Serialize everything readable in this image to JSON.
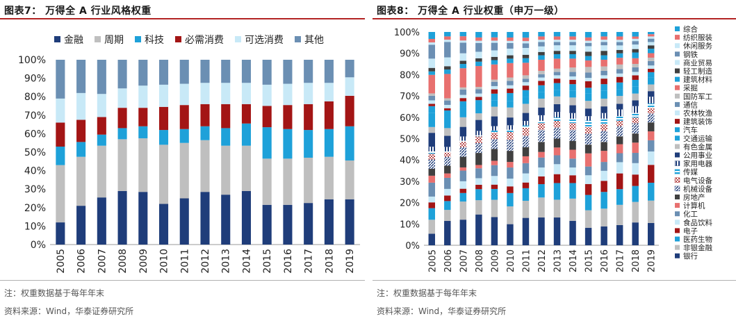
{
  "left": {
    "title": "图表7：  万得全 A 行业风格权重",
    "note": "注：权重数据基于每年年末",
    "source": "资料来源：Wind，华泰证券研究所"
  },
  "right": {
    "title": "图表8：  万得全 A 行业权重（申万一级）",
    "note": "注：权重数据基于每年年末",
    "source": "资料来源：Wind，华泰证券研究所"
  },
  "chart_data": [
    {
      "type": "bar",
      "stacked": true,
      "percent": true,
      "title": "万得全 A 行业风格权重",
      "categories": [
        "2005",
        "2006",
        "2007",
        "2008",
        "2009",
        "2010",
        "2011",
        "2012",
        "2013",
        "2014",
        "2015",
        "2016",
        "2017",
        "2018",
        "2019"
      ],
      "ylim": [
        0,
        100
      ],
      "yticks": [
        "0%",
        "10%",
        "20%",
        "30%",
        "40%",
        "50%",
        "60%",
        "70%",
        "80%",
        "90%",
        "100%"
      ],
      "legend_position": "top",
      "grid": false,
      "series": [
        {
          "name": "金融",
          "color": "#1f3d7a",
          "values": [
            12,
            21,
            25.5,
            29,
            28.5,
            22,
            25,
            28.5,
            27,
            29,
            21.5,
            21.5,
            22.5,
            24.5,
            24.5
          ]
        },
        {
          "name": "周期",
          "color": "#bfbfbf",
          "values": [
            31,
            26.5,
            28,
            28,
            29,
            32,
            30,
            28,
            26.5,
            24.5,
            25,
            25,
            24.5,
            23,
            21
          ]
        },
        {
          "name": "科技",
          "color": "#1ea1d9",
          "values": [
            10,
            8,
            6,
            6,
            6.5,
            8,
            7.5,
            7.5,
            9.5,
            12,
            17,
            16,
            15,
            15,
            18.5
          ]
        },
        {
          "name": "必需消费",
          "color": "#a31515",
          "values": [
            13,
            12,
            9.5,
            11,
            10,
            12.5,
            13,
            12,
            13,
            10.5,
            11.5,
            13,
            14,
            15,
            16.5
          ]
        },
        {
          "name": "可选消费",
          "color": "#c8e9f7",
          "values": [
            13,
            14.5,
            12.5,
            10.5,
            12,
            12,
            11.5,
            11.5,
            11.5,
            11.5,
            11.5,
            11.5,
            11.5,
            10,
            10
          ]
        },
        {
          "name": "其他",
          "color": "#6b8fb3",
          "values": [
            21,
            18,
            18.5,
            15.5,
            14,
            13.5,
            13,
            12.5,
            12.5,
            12.5,
            13.5,
            13,
            12.5,
            12.5,
            9.5
          ]
        }
      ]
    },
    {
      "type": "bar",
      "stacked": true,
      "percent": true,
      "title": "万得全 A 行业权重（申万一级）",
      "categories": [
        "2005",
        "2006",
        "2007",
        "2008",
        "2009",
        "2010",
        "2011",
        "2012",
        "2013",
        "2014",
        "2015",
        "2016",
        "2017",
        "2018",
        "2019"
      ],
      "ylim": [
        0,
        100
      ],
      "yticks": [
        "0%",
        "10%",
        "20%",
        "30%",
        "40%",
        "50%",
        "60%",
        "70%",
        "80%",
        "90%",
        "100%"
      ],
      "legend_position": "right",
      "grid": false,
      "series": [
        {
          "name": "银行",
          "color": "#1f3d7a",
          "pattern": "none",
          "values": [
            5,
            11,
            12,
            14,
            13,
            9.5,
            12,
            12.5,
            12.5,
            11,
            8,
            8.5,
            9,
            10,
            10
          ]
        },
        {
          "name": "非银金融",
          "color": "#bfbfbf",
          "pattern": "none",
          "values": [
            6,
            5,
            8.5,
            6.5,
            8,
            8,
            7.5,
            9,
            8,
            10,
            8,
            8,
            9,
            9,
            10
          ]
        },
        {
          "name": "医药生物",
          "color": "#1ea1d9",
          "pattern": "none",
          "values": [
            5,
            4,
            4,
            5,
            5,
            6,
            5.5,
            6,
            7.5,
            7,
            7,
            7.5,
            7,
            7,
            8
          ]
        },
        {
          "name": "电子",
          "color": "#a31515",
          "pattern": "none",
          "values": [
            2.5,
            2.5,
            2,
            2,
            2,
            3,
            2.5,
            3.5,
            4,
            3.5,
            5,
            5,
            7,
            5,
            8
          ]
        },
        {
          "name": "食品饮料",
          "color": "#c8e9f7",
          "pattern": "none",
          "values": [
            2.5,
            3,
            3.5,
            3,
            4,
            3.5,
            4,
            4,
            4.5,
            3.5,
            4,
            4.5,
            5,
            5,
            6
          ]
        },
        {
          "name": "化工",
          "color": "#6b8fb3",
          "pattern": "none",
          "values": [
            6,
            5,
            5,
            4.5,
            5,
            5,
            4.5,
            4.5,
            4,
            4,
            4,
            4,
            4,
            4.5,
            5
          ]
        },
        {
          "name": "计算机",
          "color": "#e8706f",
          "pattern": "none",
          "values": [
            3,
            2,
            1.5,
            1.5,
            2,
            2.5,
            3,
            2.5,
            3.5,
            4,
            6,
            5,
            4,
            4.5,
            4
          ]
        },
        {
          "name": "房地产",
          "color": "#404040",
          "pattern": "none",
          "values": [
            3,
            3.5,
            5,
            5.5,
            5.5,
            5,
            4,
            4.5,
            4,
            4,
            4,
            4,
            3.5,
            4,
            4
          ]
        },
        {
          "name": "机械设备",
          "color": "#1f3d7a",
          "pattern": "diag",
          "values": [
            4,
            4,
            4.5,
            4.5,
            4.5,
            5,
            5,
            5.5,
            5,
            5,
            5,
            5,
            4.5,
            4.5,
            4
          ]
        },
        {
          "name": "电气设备",
          "color": "#a31515",
          "pattern": "dots",
          "values": [
            2.5,
            2,
            2.5,
            3,
            3,
            3.5,
            3.5,
            3,
            3,
            3,
            3,
            3,
            2.5,
            2.5,
            2.5
          ]
        },
        {
          "name": "传媒",
          "color": "#1ea1d9",
          "pattern": "hstripe",
          "values": [
            1,
            0.5,
            0.5,
            0.5,
            1,
            1,
            1,
            1,
            1.5,
            2,
            3,
            2.5,
            2,
            2,
            2
          ]
        },
        {
          "name": "家用电器",
          "color": "#1f3d7a",
          "pattern": "vstripe",
          "values": [
            2,
            2,
            2,
            2,
            2,
            2,
            2,
            2.5,
            2.5,
            2.5,
            2,
            2.5,
            3,
            3,
            3
          ]
        },
        {
          "name": "公用事业",
          "color": "#1f3d7a",
          "pattern": "none",
          "values": [
            6,
            5,
            4.5,
            5,
            4.5,
            3.5,
            3.5,
            3.5,
            3.5,
            3.5,
            3.5,
            3,
            2.5,
            2.5,
            2.5
          ]
        },
        {
          "name": "有色金属",
          "color": "#bfbfbf",
          "pattern": "none",
          "values": [
            2.5,
            3.5,
            4.5,
            3,
            4.5,
            4.5,
            4,
            4,
            3.5,
            3.5,
            3.5,
            3.5,
            3.5,
            3,
            3
          ]
        },
        {
          "name": "交通运输",
          "color": "#1ea1d9",
          "pattern": "none",
          "values": [
            6,
            5,
            4.5,
            3.5,
            3,
            3,
            3,
            3,
            3,
            3,
            3.5,
            3.5,
            3,
            3,
            3
          ]
        },
        {
          "name": "汽车",
          "color": "#1ea1d9",
          "pattern": "none",
          "values": [
            3,
            3,
            3,
            2.5,
            3,
            3.5,
            3,
            3,
            3,
            3,
            2.5,
            3,
            3,
            3,
            2.5
          ]
        },
        {
          "name": "建筑装饰",
          "color": "#a31515",
          "pattern": "none",
          "values": [
            1,
            1,
            1.5,
            1.5,
            2,
            2,
            2,
            2,
            2,
            2,
            3,
            2.5,
            2.5,
            2,
            1.5
          ]
        },
        {
          "name": "农林牧渔",
          "color": "#c8e9f7",
          "pattern": "none",
          "values": [
            1.5,
            1.5,
            1.5,
            1.5,
            1.5,
            1.5,
            1.5,
            1.5,
            1.5,
            1.5,
            1.5,
            1.5,
            1.5,
            1.5,
            1.5
          ]
        },
        {
          "name": "通信",
          "color": "#6b8fb3",
          "pattern": "none",
          "values": [
            2,
            2,
            2.5,
            2,
            2,
            2,
            1.5,
            1.5,
            1.5,
            2,
            2.5,
            2,
            2,
            2,
            2
          ]
        },
        {
          "name": "国防军工",
          "color": "#bfbfbf",
          "pattern": "none",
          "values": [
            1,
            1,
            1,
            1,
            1,
            1.5,
            1.5,
            1.5,
            1.5,
            2,
            2.5,
            2,
            2,
            1.5,
            1.5
          ]
        },
        {
          "name": "采掘",
          "color": "#e8706f",
          "pattern": "none",
          "values": [
            8,
            11,
            9,
            9.5,
            7,
            6.5,
            5.5,
            5,
            4.5,
            4,
            3,
            3,
            3,
            2.5,
            2
          ]
        },
        {
          "name": "建筑材料",
          "color": "#1ea1d9",
          "pattern": "none",
          "values": [
            1.5,
            2,
            2,
            2,
            2,
            2,
            2,
            2,
            2,
            2,
            2,
            2,
            2,
            2.5,
            2
          ]
        },
        {
          "name": "轻工制造",
          "color": "#404040",
          "pattern": "none",
          "values": [
            1.5,
            1.5,
            1.5,
            1.5,
            1.5,
            1.5,
            1.5,
            1.5,
            1.5,
            1.5,
            2,
            2,
            1.5,
            1.5,
            1.5
          ]
        },
        {
          "name": "商业贸易",
          "color": "#c8e9f7",
          "pattern": "none",
          "values": [
            4,
            4,
            3.5,
            3,
            3,
            3,
            3,
            2.5,
            2.5,
            2.5,
            2.5,
            2.5,
            2,
            2,
            1.5
          ]
        },
        {
          "name": "钢铁",
          "color": "#6b8fb3",
          "pattern": "none",
          "values": [
            6,
            7,
            5,
            4,
            3.5,
            2.5,
            2,
            2,
            1.5,
            1.5,
            1.5,
            1.5,
            1.5,
            1.5,
            1.5
          ]
        },
        {
          "name": "休闲服务",
          "color": "#c8e9f7",
          "pattern": "none",
          "values": [
            1,
            1,
            1,
            1,
            1,
            1,
            1,
            1,
            1,
            1,
            1,
            1,
            1,
            1,
            1
          ]
        },
        {
          "name": "纺织服装",
          "color": "#e8706f",
          "pattern": "none",
          "values": [
            1.5,
            1.5,
            2,
            1.5,
            1.5,
            1.5,
            1.5,
            1.5,
            1.5,
            1.5,
            1.5,
            1.5,
            1.5,
            1,
            1
          ]
        },
        {
          "name": "综合",
          "color": "#1ea1d9",
          "pattern": "none",
          "values": [
            3,
            2,
            2,
            2.5,
            2.5,
            2.5,
            2.5,
            2,
            2,
            2,
            2.5,
            2,
            2,
            2,
            1
          ]
        }
      ]
    }
  ]
}
